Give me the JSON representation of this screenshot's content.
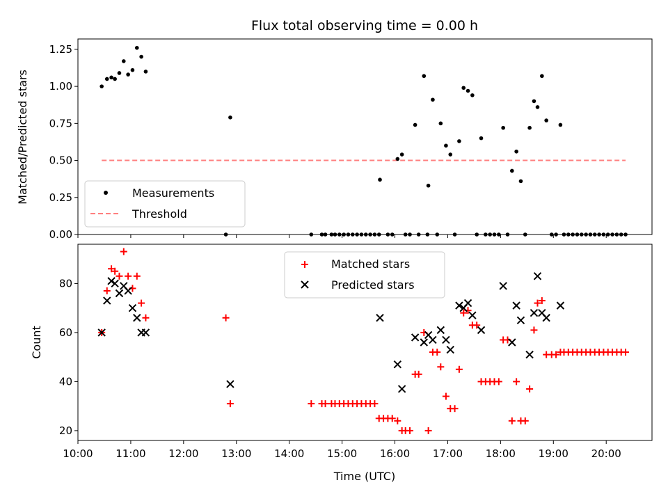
{
  "chart_data": [
    {
      "type": "scatter",
      "title": "Flux total observing time = 0.00 h",
      "xlabel": "",
      "ylabel": "Matched/Predicted stars",
      "xlim": [
        "10:00",
        "20:52"
      ],
      "ylim": [
        0,
        1.32
      ],
      "yticks": [
        "0.00",
        "0.25",
        "0.50",
        "0.75",
        "1.00",
        "1.25"
      ],
      "legend": {
        "position": "lower-left",
        "entries": [
          "Measurements",
          "Threshold"
        ]
      },
      "colors": {
        "measurements": "#000000",
        "threshold": "#ff7f7f"
      },
      "series": [
        {
          "name": "Measurements",
          "marker": "dot",
          "points": [
            [
              "10:27",
              1.0
            ],
            [
              "10:33",
              1.05
            ],
            [
              "10:38",
              1.06
            ],
            [
              "10:42",
              1.05
            ],
            [
              "10:47",
              1.09
            ],
            [
              "10:52",
              1.17
            ],
            [
              "10:57",
              1.08
            ],
            [
              "11:02",
              1.11
            ],
            [
              "11:07",
              1.26
            ],
            [
              "11:12",
              1.2
            ],
            [
              "11:17",
              1.1
            ],
            [
              "12:48",
              0.0
            ],
            [
              "12:53",
              0.79
            ],
            [
              "14:25",
              0.0
            ],
            [
              "14:37",
              0.0
            ],
            [
              "14:41",
              0.0
            ],
            [
              "14:48",
              0.0
            ],
            [
              "14:52",
              0.0
            ],
            [
              "14:57",
              0.0
            ],
            [
              "15:02",
              0.0
            ],
            [
              "15:07",
              0.0
            ],
            [
              "15:12",
              0.0
            ],
            [
              "15:17",
              0.0
            ],
            [
              "15:22",
              0.0
            ],
            [
              "15:27",
              0.0
            ],
            [
              "15:32",
              0.0
            ],
            [
              "15:37",
              0.0
            ],
            [
              "15:42",
              0.0
            ],
            [
              "15:43",
              0.37
            ],
            [
              "15:52",
              0.0
            ],
            [
              "15:57",
              0.0
            ],
            [
              "16:03",
              0.51
            ],
            [
              "16:08",
              0.54
            ],
            [
              "16:12",
              0.0
            ],
            [
              "16:17",
              0.0
            ],
            [
              "16:23",
              0.74
            ],
            [
              "16:27",
              0.0
            ],
            [
              "16:33",
              1.07
            ],
            [
              "16:37",
              0.0
            ],
            [
              "16:38",
              0.33
            ],
            [
              "16:43",
              0.91
            ],
            [
              "16:48",
              0.0
            ],
            [
              "16:52",
              0.75
            ],
            [
              "16:58",
              0.6
            ],
            [
              "17:03",
              0.54
            ],
            [
              "17:08",
              0.0
            ],
            [
              "17:13",
              0.63
            ],
            [
              "17:18",
              0.99
            ],
            [
              "17:23",
              0.97
            ],
            [
              "17:28",
              0.94
            ],
            [
              "17:33",
              0.0
            ],
            [
              "17:38",
              0.65
            ],
            [
              "17:43",
              0.0
            ],
            [
              "17:48",
              0.0
            ],
            [
              "17:53",
              0.0
            ],
            [
              "17:58",
              0.0
            ],
            [
              "18:03",
              0.72
            ],
            [
              "18:08",
              0.0
            ],
            [
              "18:13",
              0.43
            ],
            [
              "18:18",
              0.56
            ],
            [
              "18:23",
              0.36
            ],
            [
              "18:28",
              0.0
            ],
            [
              "18:33",
              0.72
            ],
            [
              "18:38",
              0.9
            ],
            [
              "18:42",
              0.86
            ],
            [
              "18:47",
              1.07
            ],
            [
              "18:52",
              0.77
            ],
            [
              "18:58",
              0.0
            ],
            [
              "19:03",
              0.0
            ],
            [
              "19:08",
              0.74
            ],
            [
              "19:12",
              0.0
            ],
            [
              "19:17",
              0.0
            ],
            [
              "19:22",
              0.0
            ],
            [
              "19:27",
              0.0
            ],
            [
              "19:32",
              0.0
            ],
            [
              "19:37",
              0.0
            ],
            [
              "19:42",
              0.0
            ],
            [
              "19:47",
              0.0
            ],
            [
              "19:52",
              0.0
            ],
            [
              "19:57",
              0.0
            ],
            [
              "20:02",
              0.0
            ],
            [
              "20:07",
              0.0
            ],
            [
              "20:12",
              0.0
            ],
            [
              "20:17",
              0.0
            ],
            [
              "20:22",
              0.0
            ]
          ]
        },
        {
          "name": "Threshold",
          "style": "dashed-line",
          "points": [
            [
              "10:27",
              0.5
            ],
            [
              "20:22",
              0.5
            ]
          ]
        }
      ]
    },
    {
      "type": "scatter",
      "title": "",
      "xlabel": "Time (UTC)",
      "ylabel": "Count",
      "xlim": [
        "10:00",
        "20:52"
      ],
      "ylim": [
        16,
        96
      ],
      "yticks": [
        "20",
        "40",
        "60",
        "80"
      ],
      "xticks": [
        "10:00",
        "11:00",
        "12:00",
        "13:00",
        "14:00",
        "15:00",
        "16:00",
        "17:00",
        "18:00",
        "19:00",
        "20:00"
      ],
      "legend": {
        "position": "upper-center",
        "entries": [
          "Matched stars",
          "Predicted stars"
        ]
      },
      "colors": {
        "matched": "#ff0000",
        "predicted": "#000000"
      },
      "series": [
        {
          "name": "Matched stars",
          "marker": "plus",
          "points": [
            [
              "10:27",
              60
            ],
            [
              "10:33",
              77
            ],
            [
              "10:38",
              86
            ],
            [
              "10:42",
              85
            ],
            [
              "10:47",
              83
            ],
            [
              "10:52",
              93
            ],
            [
              "10:57",
              83
            ],
            [
              "11:02",
              78
            ],
            [
              "11:07",
              83
            ],
            [
              "11:12",
              72
            ],
            [
              "11:17",
              66
            ],
            [
              "12:48",
              66
            ],
            [
              "12:53",
              31
            ],
            [
              "14:25",
              31
            ],
            [
              "14:37",
              31
            ],
            [
              "14:41",
              31
            ],
            [
              "14:48",
              31
            ],
            [
              "14:52",
              31
            ],
            [
              "14:57",
              31
            ],
            [
              "15:02",
              31
            ],
            [
              "15:07",
              31
            ],
            [
              "15:12",
              31
            ],
            [
              "15:17",
              31
            ],
            [
              "15:22",
              31
            ],
            [
              "15:27",
              31
            ],
            [
              "15:32",
              31
            ],
            [
              "15:37",
              31
            ],
            [
              "15:42",
              25
            ],
            [
              "15:47",
              25
            ],
            [
              "15:52",
              25
            ],
            [
              "15:57",
              25
            ],
            [
              "16:03",
              24
            ],
            [
              "16:08",
              20
            ],
            [
              "16:12",
              20
            ],
            [
              "16:17",
              20
            ],
            [
              "16:23",
              43
            ],
            [
              "16:27",
              43
            ],
            [
              "16:33",
              60
            ],
            [
              "16:38",
              20
            ],
            [
              "16:43",
              52
            ],
            [
              "16:48",
              52
            ],
            [
              "16:52",
              46
            ],
            [
              "16:58",
              34
            ],
            [
              "17:03",
              29
            ],
            [
              "17:08",
              29
            ],
            [
              "17:13",
              45
            ],
            [
              "17:18",
              68
            ],
            [
              "17:23",
              69
            ],
            [
              "17:28",
              63
            ],
            [
              "17:33",
              63
            ],
            [
              "17:38",
              40
            ],
            [
              "17:43",
              40
            ],
            [
              "17:48",
              40
            ],
            [
              "17:53",
              40
            ],
            [
              "17:58",
              40
            ],
            [
              "18:03",
              57
            ],
            [
              "18:08",
              57
            ],
            [
              "18:13",
              24
            ],
            [
              "18:18",
              40
            ],
            [
              "18:23",
              24
            ],
            [
              "18:28",
              24
            ],
            [
              "18:33",
              37
            ],
            [
              "18:38",
              61
            ],
            [
              "18:42",
              72
            ],
            [
              "18:47",
              73
            ],
            [
              "18:52",
              51
            ],
            [
              "18:58",
              51
            ],
            [
              "19:03",
              51
            ],
            [
              "19:08",
              52
            ],
            [
              "19:12",
              52
            ],
            [
              "19:17",
              52
            ],
            [
              "19:22",
              52
            ],
            [
              "19:27",
              52
            ],
            [
              "19:32",
              52
            ],
            [
              "19:37",
              52
            ],
            [
              "19:42",
              52
            ],
            [
              "19:47",
              52
            ],
            [
              "19:52",
              52
            ],
            [
              "19:57",
              52
            ],
            [
              "20:02",
              52
            ],
            [
              "20:07",
              52
            ],
            [
              "20:12",
              52
            ],
            [
              "20:17",
              52
            ],
            [
              "20:22",
              52
            ]
          ]
        },
        {
          "name": "Predicted stars",
          "marker": "x",
          "points": [
            [
              "10:27",
              60
            ],
            [
              "10:33",
              73
            ],
            [
              "10:38",
              81
            ],
            [
              "10:42",
              80
            ],
            [
              "10:47",
              76
            ],
            [
              "10:52",
              79
            ],
            [
              "10:57",
              77
            ],
            [
              "11:02",
              70
            ],
            [
              "11:07",
              66
            ],
            [
              "11:12",
              60
            ],
            [
              "11:17",
              60
            ],
            [
              "12:53",
              39
            ],
            [
              "15:43",
              66
            ],
            [
              "16:03",
              47
            ],
            [
              "16:08",
              37
            ],
            [
              "16:23",
              58
            ],
            [
              "16:33",
              56
            ],
            [
              "16:38",
              59
            ],
            [
              "16:43",
              57
            ],
            [
              "16:52",
              61
            ],
            [
              "16:58",
              57
            ],
            [
              "17:03",
              53
            ],
            [
              "17:13",
              71
            ],
            [
              "17:18",
              70
            ],
            [
              "17:23",
              72
            ],
            [
              "17:28",
              67
            ],
            [
              "17:38",
              61
            ],
            [
              "18:03",
              79
            ],
            [
              "18:13",
              56
            ],
            [
              "18:18",
              71
            ],
            [
              "18:23",
              65
            ],
            [
              "18:33",
              51
            ],
            [
              "18:38",
              68
            ],
            [
              "18:42",
              83
            ],
            [
              "18:47",
              68
            ],
            [
              "18:52",
              66
            ],
            [
              "19:08",
              71
            ]
          ]
        }
      ]
    }
  ]
}
